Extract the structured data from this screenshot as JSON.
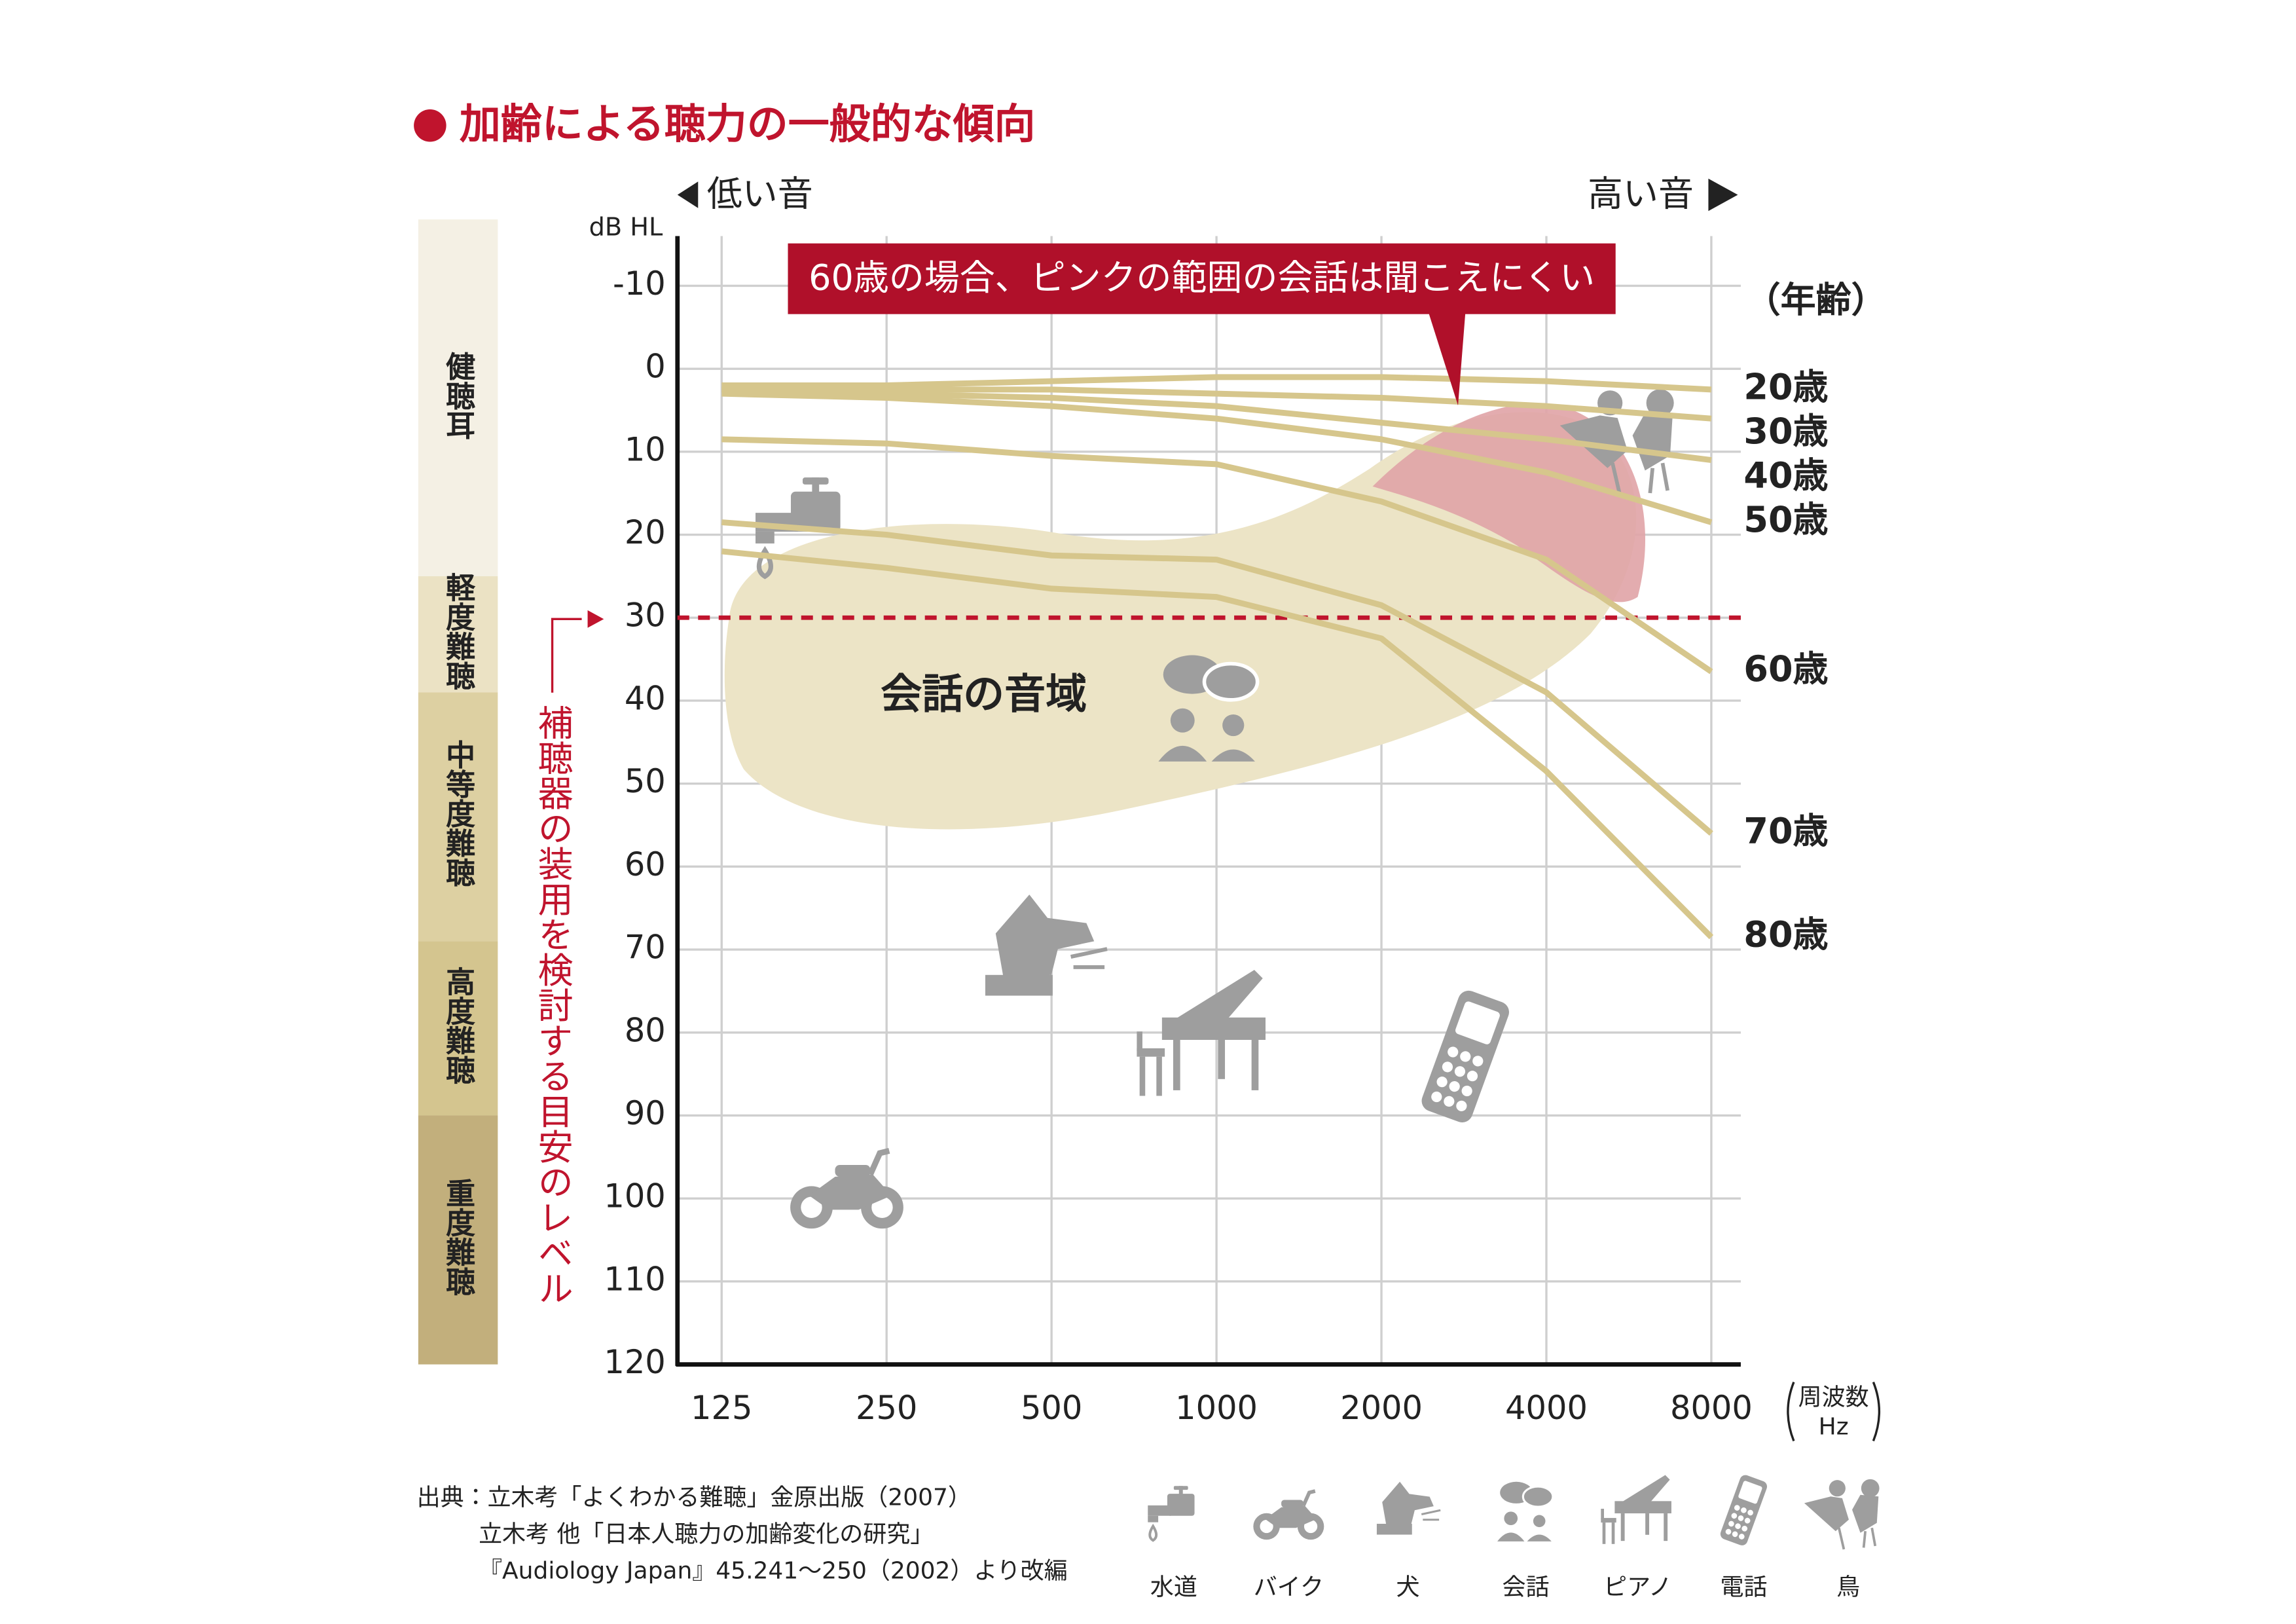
{
  "chart_data": {
    "type": "line",
    "title": "加齢による聴力の一般的な傾向",
    "title_color": "#c0142d",
    "y_label": "dB HL",
    "low_label": "低い音",
    "high_label": "高い音",
    "x_label": "周波数",
    "x_unit": "Hz",
    "legend_title": "（年齢）",
    "categories": [
      "125",
      "250",
      "500",
      "1000",
      "2000",
      "4000",
      "8000"
    ],
    "ylim": [
      120,
      -16
    ],
    "yticks": [
      -10,
      0,
      10,
      20,
      30,
      40,
      50,
      60,
      70,
      80,
      90,
      100,
      110,
      120
    ],
    "grid": true,
    "series": [
      {
        "name": "20歳",
        "color": "#d6c68c",
        "values": [
          2,
          2,
          1.5,
          1,
          1,
          1.5,
          2.5
        ]
      },
      {
        "name": "30歳",
        "color": "#d6c68c",
        "values": [
          2.5,
          2.5,
          2.5,
          3,
          3.5,
          4.5,
          6
        ]
      },
      {
        "name": "40歳",
        "color": "#d6c68c",
        "values": [
          2.5,
          3,
          3.5,
          4.5,
          6.5,
          8.5,
          11
        ]
      },
      {
        "name": "50歳",
        "color": "#d6c68c",
        "values": [
          3,
          3.5,
          4.5,
          6,
          8.5,
          12.5,
          18.5
        ]
      },
      {
        "name": "60歳",
        "color": "#d6c68c",
        "values": [
          8.5,
          9,
          10.5,
          11.5,
          16,
          23,
          36.5
        ]
      },
      {
        "name": "70歳",
        "color": "#d6c68c",
        "values": [
          18.5,
          20,
          22.5,
          23,
          28.5,
          39,
          56
        ]
      },
      {
        "name": "80歳",
        "color": "#d6c68c",
        "values": [
          22,
          24,
          26.5,
          27.5,
          32.5,
          48.5,
          68.5
        ]
      }
    ],
    "reference_line": {
      "value": 30,
      "label": "補聴器の装用を検討する目安のレベル",
      "color": "#c0142d"
    },
    "hearing_levels": [
      {
        "label": "健聴耳",
        "range": [
          -18,
          25
        ],
        "color": "#f4f0e4"
      },
      {
        "label": "軽度難聴",
        "range": [
          25,
          39
        ],
        "color": "#ebe2c4"
      },
      {
        "label": "中等度難聴",
        "range": [
          39,
          69
        ],
        "color": "#ddd0a2"
      },
      {
        "label": "高度難聴",
        "range": [
          69,
          90
        ],
        "color": "#d4c58f"
      },
      {
        "label": "重度難聴",
        "range": [
          90,
          120
        ],
        "color": "#c2af7c"
      }
    ],
    "speech_area_label": "会話の音域",
    "callout": "60歳の場合、ピンクの範囲の会話は聞こえにくい",
    "source": [
      "出典：立木考「よくわかる難聴」金原出版（2007）",
      "立木考 他「日本人聴力の加齢変化の研究」",
      "『Audiology Japan』45.241〜250（2002）より改編"
    ],
    "icon_legend": [
      "水道",
      "バイク",
      "犬",
      "会話",
      "ピアノ",
      "電話",
      "鳥"
    ]
  }
}
